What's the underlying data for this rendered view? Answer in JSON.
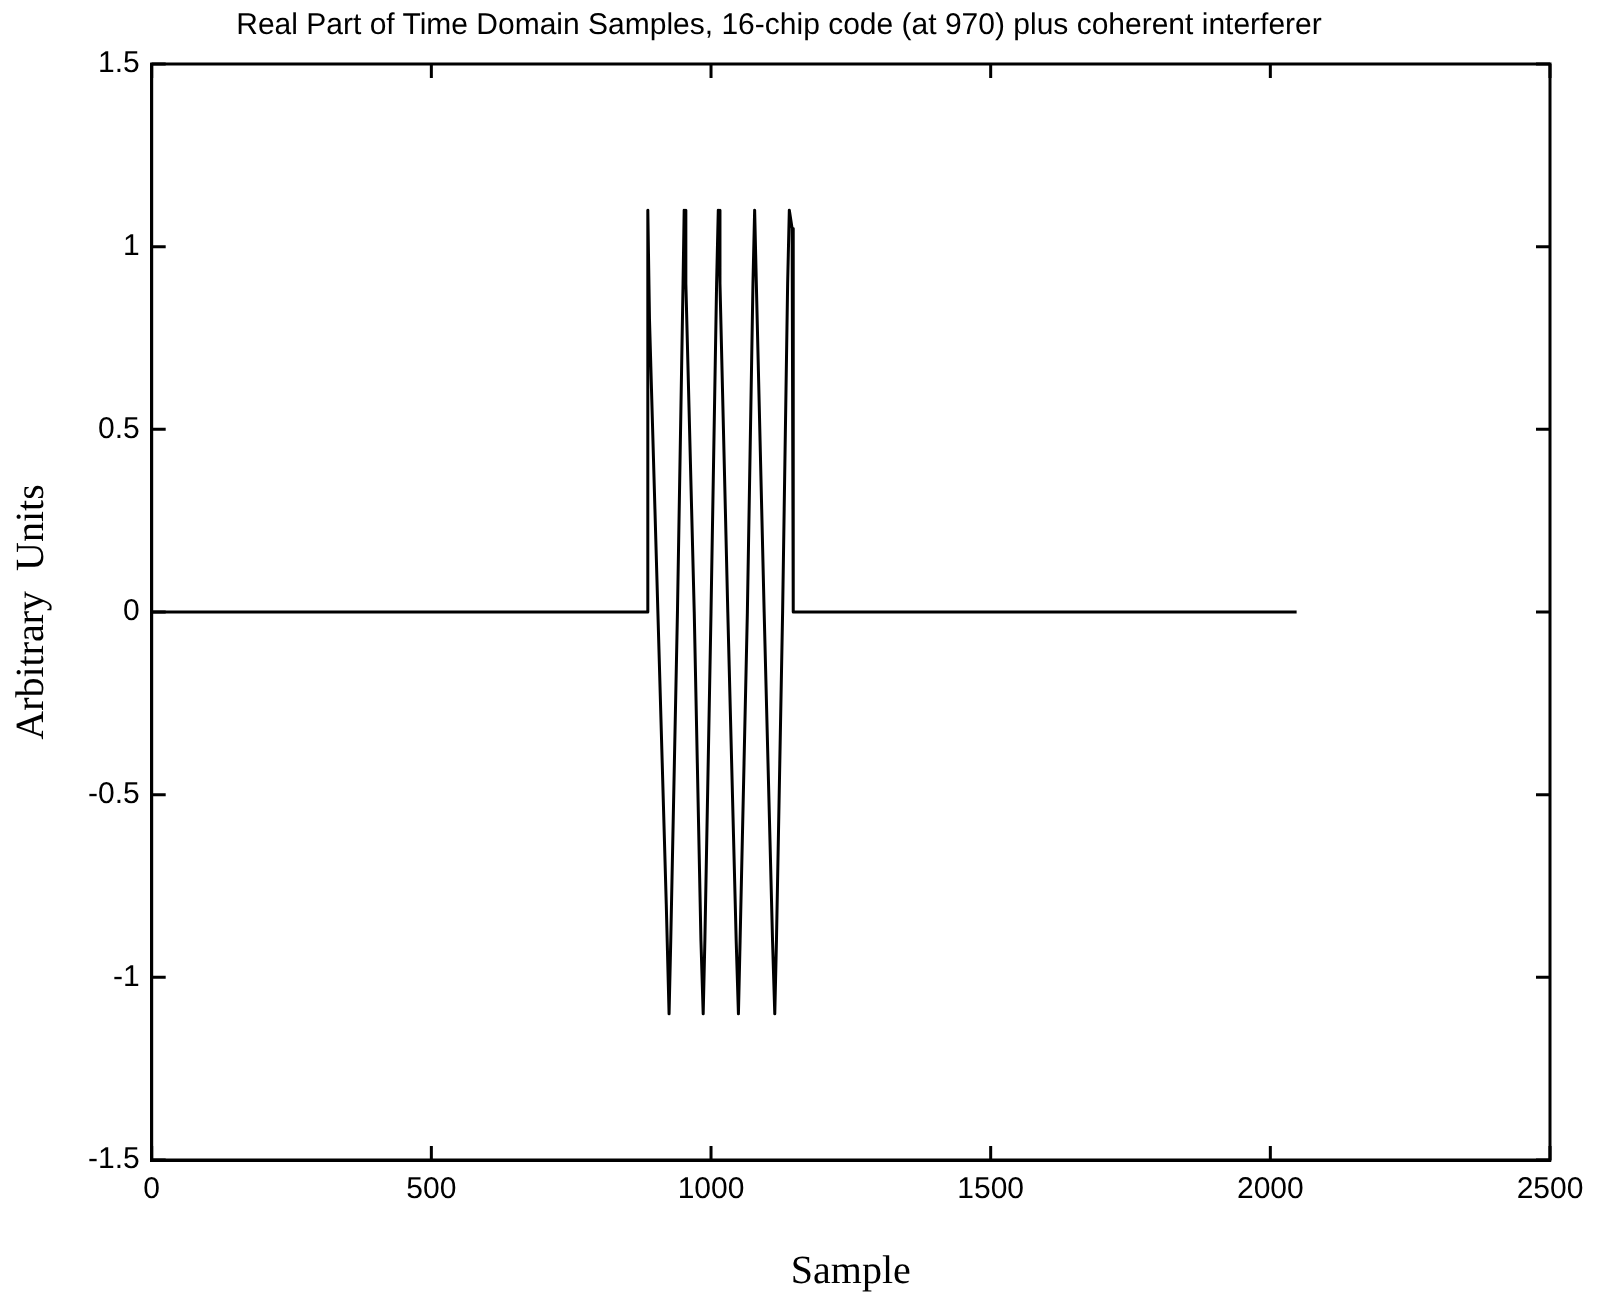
{
  "chart_data": {
    "type": "line",
    "title": "Real Part of Time Domain Samples, 16-chip code (at 970) plus coherent interferer",
    "xlabel": "Sample",
    "ylabel": "Arbitrary  Units",
    "x": [
      0,
      885,
      887,
      890,
      905,
      920,
      925,
      928,
      940,
      950,
      952,
      955,
      970,
      982,
      986,
      989,
      1000,
      1010,
      1013,
      1016,
      1030,
      1045,
      1049,
      1052,
      1065,
      1075,
      1078,
      1081,
      1095,
      1110,
      1114,
      1117,
      1128,
      1137,
      1140,
      1145,
      1147,
      2047
    ],
    "series": [
      {
        "color": "#000000",
        "values": [
          0,
          0,
          1.1,
          0.8,
          0,
          -0.8,
          -1.1,
          -0.9,
          0,
          0.9,
          1.1,
          0.9,
          0,
          -0.9,
          -1.1,
          -0.9,
          0,
          0.9,
          1.1,
          0.9,
          0,
          -0.9,
          -1.1,
          -0.9,
          0,
          0.9,
          1.1,
          0.9,
          0,
          -0.9,
          -1.1,
          -0.9,
          0,
          0.9,
          1.1,
          1.05,
          0,
          0
        ]
      }
    ],
    "xlim": [
      0,
      2500
    ],
    "xticks": [
      0,
      500,
      1000,
      1500,
      2000,
      2500
    ],
    "ylim": [
      -1.5,
      1.5
    ],
    "yticks": [
      -1.5,
      -1,
      -0.5,
      0,
      0.5,
      1,
      1.5
    ],
    "grid": false,
    "legend": false,
    "marker": "none",
    "line_style": "solid"
  }
}
